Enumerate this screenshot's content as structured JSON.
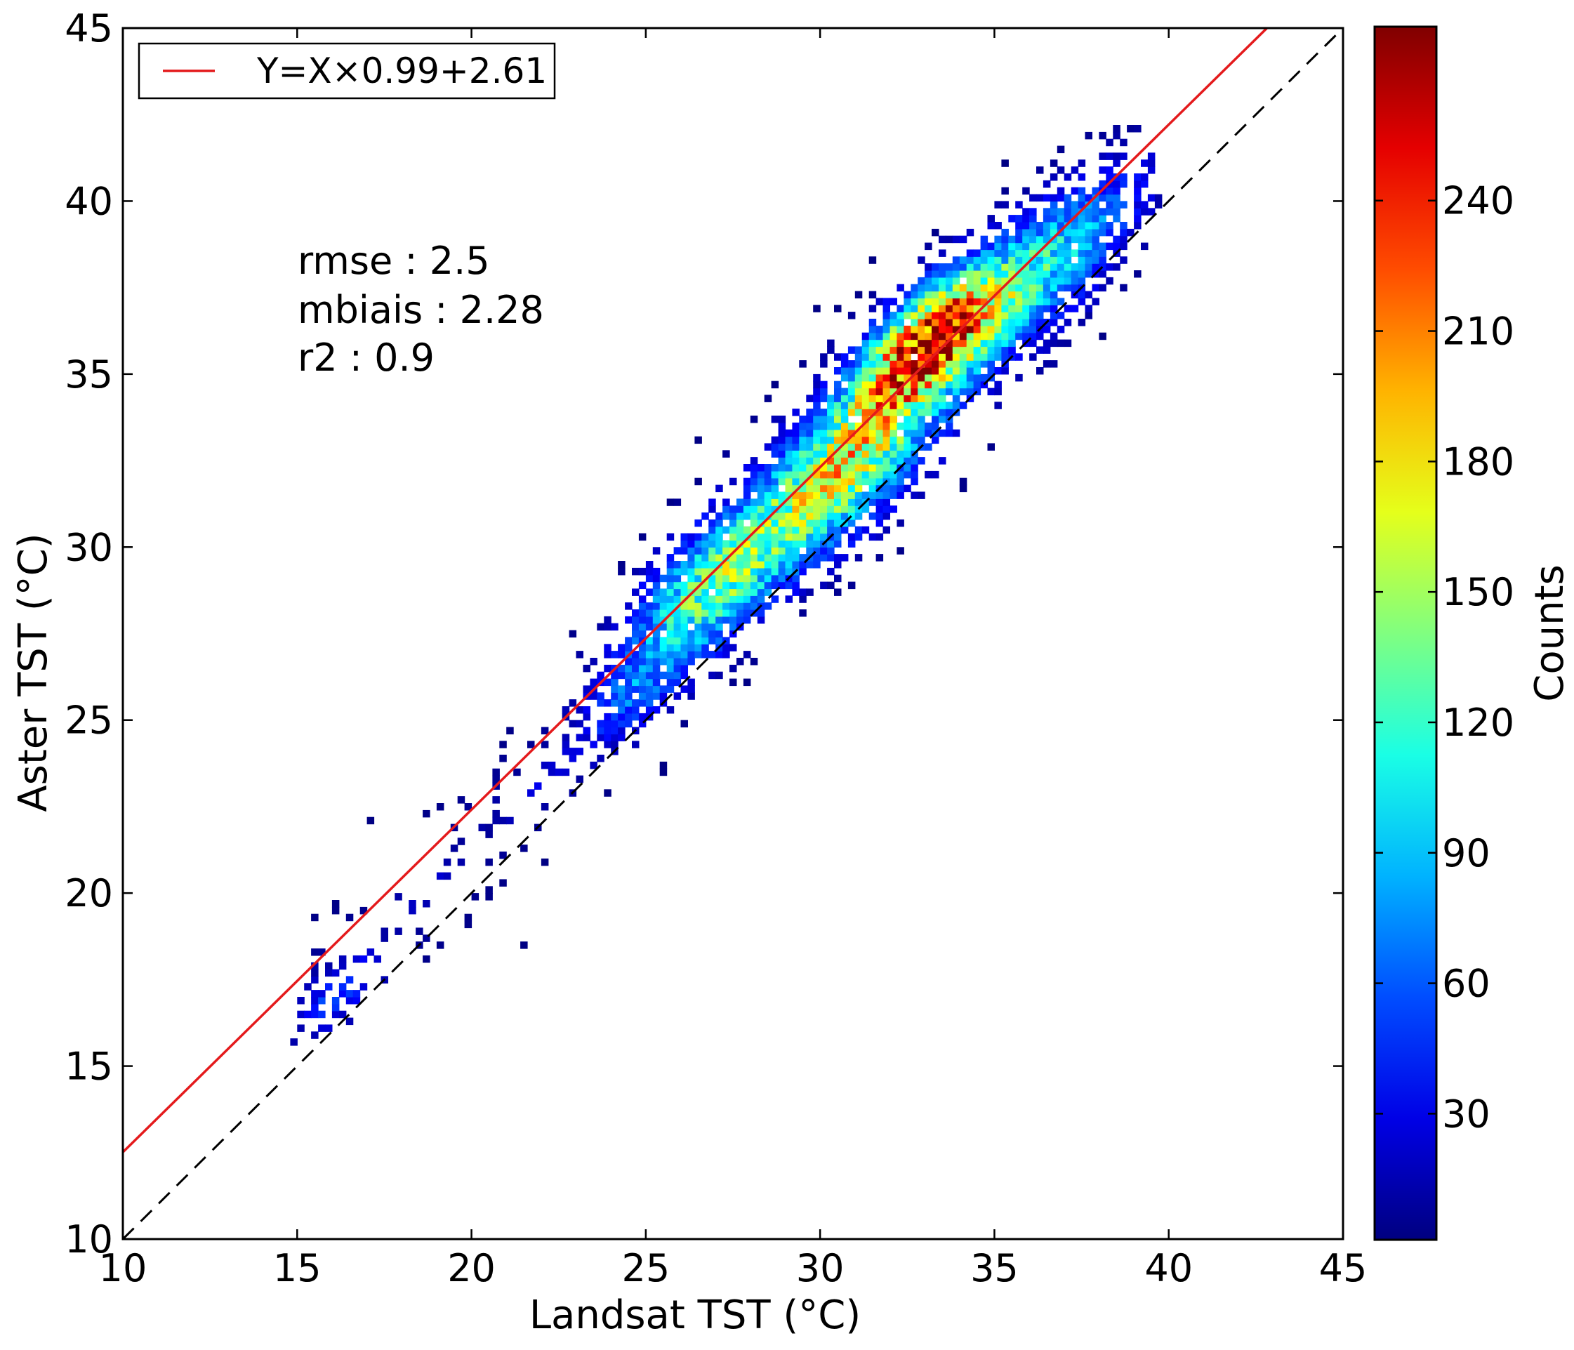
{
  "chart_data": {
    "type": "heatmap",
    "title": "",
    "xlabel": "Landsat TST (°C)",
    "ylabel": "Aster TST (°C)",
    "xlim": [
      10,
      45
    ],
    "ylim": [
      10,
      45
    ],
    "xticks": [
      "10",
      "15",
      "20",
      "25",
      "30",
      "35",
      "40",
      "45"
    ],
    "yticks": [
      "10",
      "15",
      "20",
      "25",
      "30",
      "35",
      "40",
      "45"
    ],
    "grid": false,
    "legend": {
      "position": "top-left",
      "entries": [
        {
          "label": "Y=X×0.99+2.61",
          "color": "#e41a1c"
        }
      ]
    },
    "fit_line": {
      "slope": 0.99,
      "intercept": 2.61,
      "color": "#e41a1c"
    },
    "identity_line": {
      "slope": 1,
      "intercept": 0,
      "style": "dashed",
      "color": "#000000"
    },
    "stats": [
      "rmse : 2.5",
      "mbiais : 2.28",
      "r2 : 0.9"
    ],
    "colorbar": {
      "label": "Counts",
      "colormap": "jet",
      "range": [
        1,
        280
      ],
      "ticks": [
        "30",
        "60",
        "90",
        "120",
        "150",
        "180",
        "210",
        "240"
      ]
    },
    "density_clusters": [
      {
        "x": 15.8,
        "y": 16.8,
        "spread": 0.45,
        "weight": 0.06
      },
      {
        "x": 16.7,
        "y": 17.4,
        "spread": 0.35,
        "weight": 0.03
      },
      {
        "x": 18.8,
        "y": 20.0,
        "spread": 0.35,
        "weight": 0.02
      },
      {
        "x": 21.9,
        "y": 23.0,
        "spread": 0.35,
        "weight": 0.03
      },
      {
        "x": 24.5,
        "y": 25.6,
        "spread": 0.6,
        "weight": 0.08
      },
      {
        "x": 26.8,
        "y": 28.8,
        "spread": 0.9,
        "weight": 0.22
      },
      {
        "x": 30.5,
        "y": 32.2,
        "spread": 1.0,
        "weight": 0.28
      },
      {
        "x": 33.0,
        "y": 35.8,
        "spread": 0.8,
        "weight": 0.42
      },
      {
        "x": 35.5,
        "y": 37.3,
        "spread": 1.0,
        "weight": 0.12
      },
      {
        "x": 37.2,
        "y": 39.0,
        "spread": 0.8,
        "weight": 0.08
      }
    ]
  }
}
